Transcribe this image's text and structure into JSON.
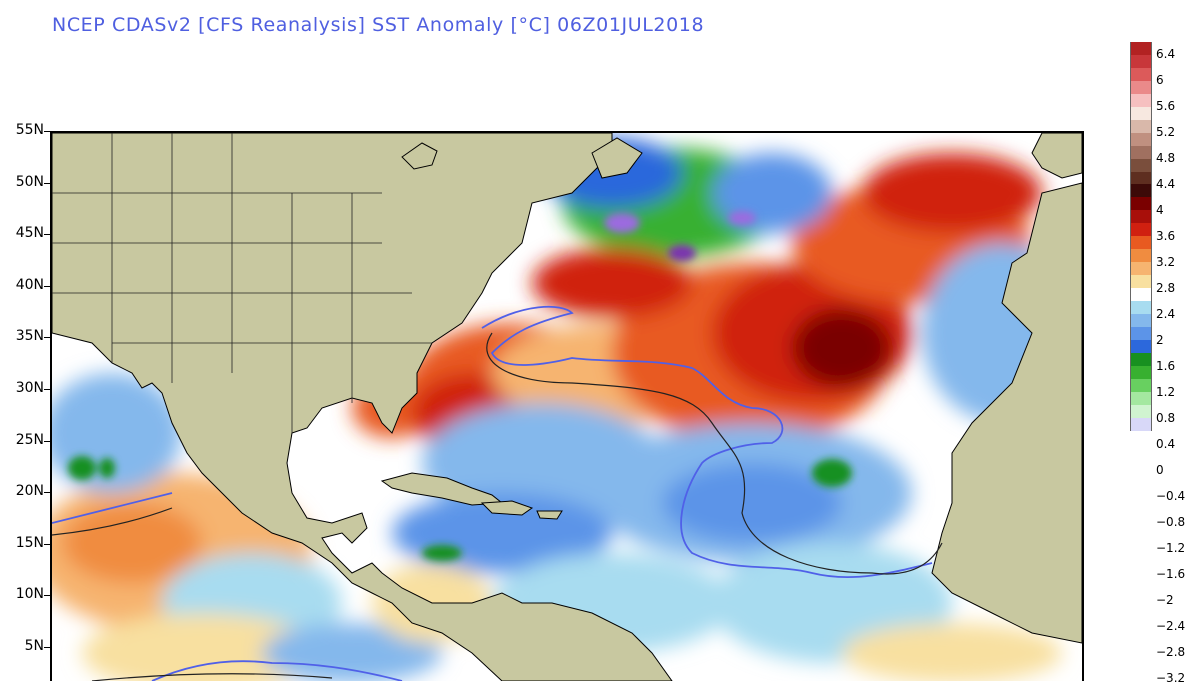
{
  "title": "NCEP CDASv2 [CFS Reanalysis] SST Anomaly [°C] 06Z01JUL2018",
  "lat_labels": [
    "55N",
    "50N",
    "45N",
    "40N",
    "35N",
    "30N",
    "25N",
    "20N",
    "15N",
    "10N",
    "5N"
  ],
  "colorbar": {
    "labels": [
      "6.4",
      "6",
      "5.6",
      "5.2",
      "4.8",
      "4.4",
      "4",
      "3.6",
      "3.2",
      "2.8",
      "2.4",
      "2",
      "1.6",
      "1.2",
      "0.8",
      "0.4",
      "0",
      "−0.4",
      "−0.8",
      "−1.2",
      "−1.6",
      "−2",
      "−2.4",
      "−2.8",
      "−3.2"
    ],
    "colors": [
      "#b22222",
      "#c8373a",
      "#dc5a5a",
      "#ea8a8a",
      "#f6c0c0",
      "#f7e8e0",
      "#d9b8aa",
      "#c09080",
      "#a07060",
      "#7a4e3c",
      "#5e2e20",
      "#3c0a08",
      "#7a0000",
      "#a80f0a",
      "#d02010",
      "#e85a20",
      "#f08c40",
      "#f6b470",
      "#f8e0a0",
      "#ffffff",
      "#a8dcf0",
      "#84b8ec",
      "#5c94e8",
      "#2c68dc",
      "#189020",
      "#38b030",
      "#68d060",
      "#a4e8a0",
      "#d0f4d0",
      "#d8d8f8"
    ]
  },
  "colors": {
    "title": "#4f5fe0",
    "land": "#c8c8a0",
    "coast": "#000000",
    "contour_blue": "#5060e8",
    "contour_black": "#222222"
  }
}
